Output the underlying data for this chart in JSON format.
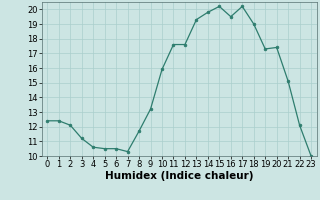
{
  "x": [
    0,
    1,
    2,
    3,
    4,
    5,
    6,
    7,
    8,
    9,
    10,
    11,
    12,
    13,
    14,
    15,
    16,
    17,
    18,
    19,
    20,
    21,
    22,
    23
  ],
  "y": [
    12.4,
    12.4,
    12.1,
    11.2,
    10.6,
    10.5,
    10.5,
    10.3,
    11.7,
    13.2,
    15.9,
    17.6,
    17.6,
    19.3,
    19.8,
    20.2,
    19.5,
    20.2,
    19.0,
    17.3,
    17.4,
    15.1,
    12.1,
    10.0
  ],
  "line_color": "#2e7d6e",
  "marker_color": "#2e7d6e",
  "bg_color": "#cce5e3",
  "grid_color": "#aacfcd",
  "xlabel": "Humidex (Indice chaleur)",
  "xlim": [
    -0.5,
    23.5
  ],
  "ylim": [
    10,
    20.5
  ],
  "yticks": [
    10,
    11,
    12,
    13,
    14,
    15,
    16,
    17,
    18,
    19,
    20
  ],
  "xticks": [
    0,
    1,
    2,
    3,
    4,
    5,
    6,
    7,
    8,
    9,
    10,
    11,
    12,
    13,
    14,
    15,
    16,
    17,
    18,
    19,
    20,
    21,
    22,
    23
  ],
  "tick_fontsize": 6,
  "label_fontsize": 7.5
}
